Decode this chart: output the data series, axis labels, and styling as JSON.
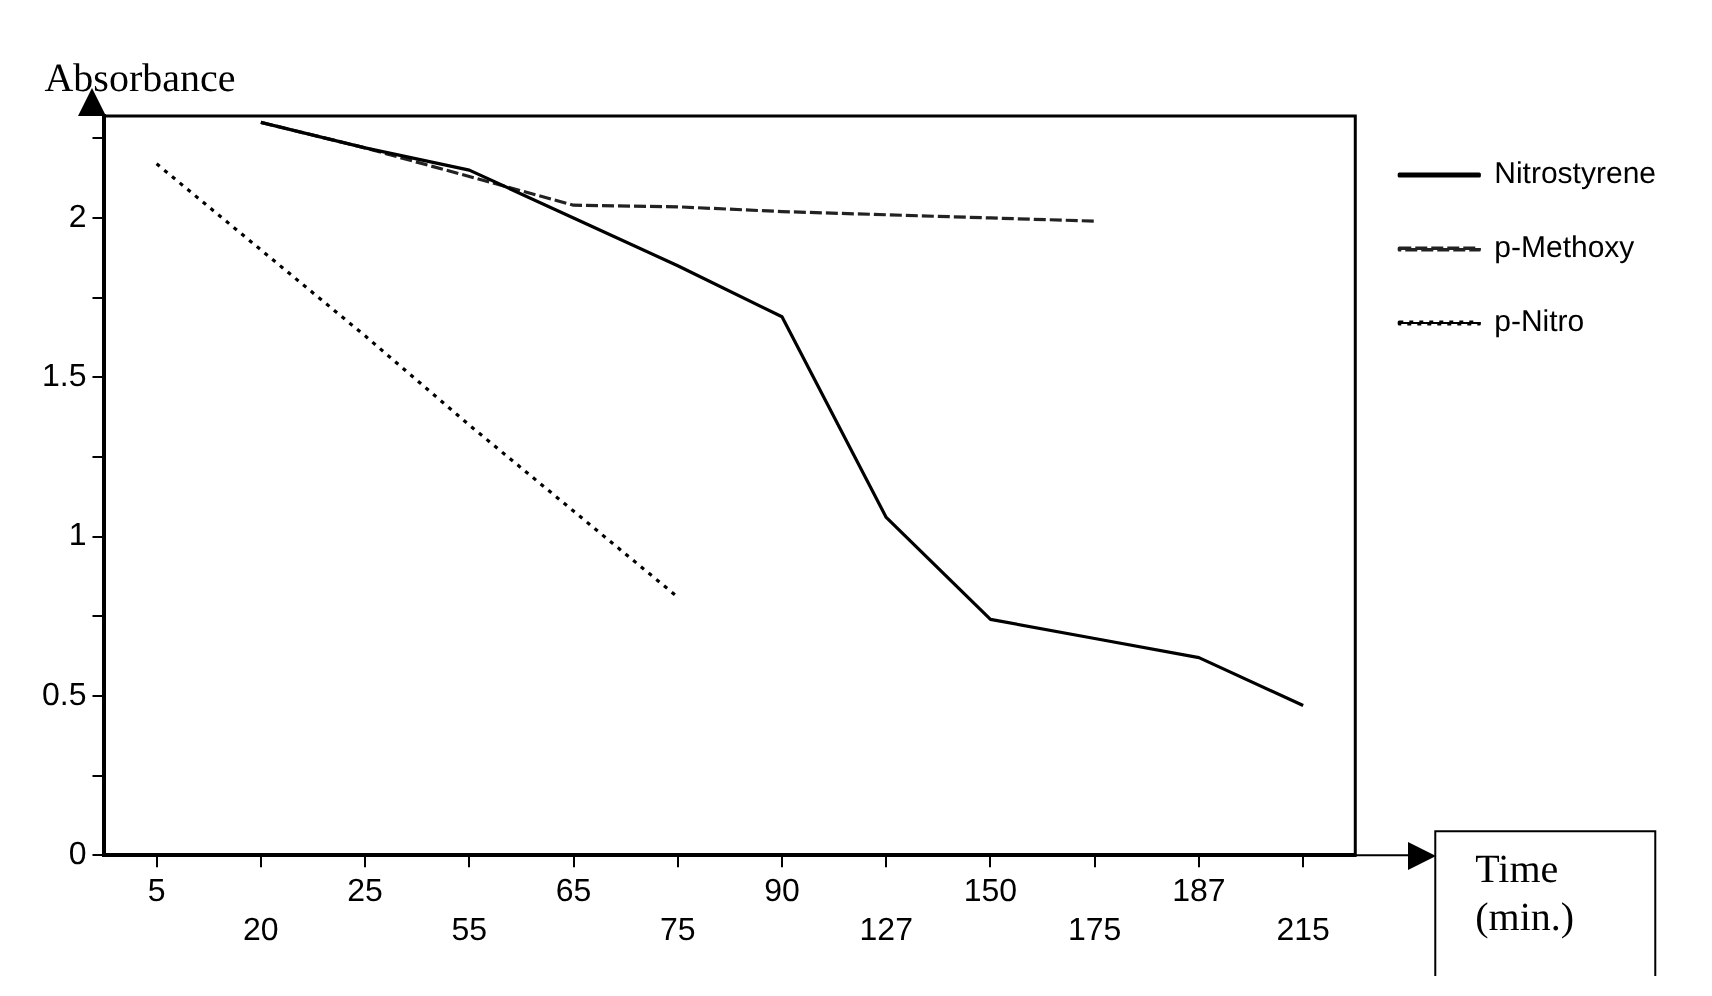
{
  "chart_data": {
    "type": "line",
    "xlabel": "Time (min.)",
    "ylabel": "Absorbance",
    "categories": [
      "5",
      "20",
      "25",
      "55",
      "65",
      "75",
      "90",
      "127",
      "150",
      "175",
      "187",
      "215"
    ],
    "series": [
      {
        "name": "Nitrostyrene",
        "color": "#000000",
        "line_style": "solid",
        "values": [
          null,
          2.3,
          2.22,
          2.15,
          2.0,
          1.85,
          1.69,
          1.06,
          0.74,
          0.68,
          0.62,
          0.47
        ]
      },
      {
        "name": "p-Methoxy",
        "color": "#222222",
        "line_style": "dashed",
        "values": [
          null,
          2.3,
          2.22,
          2.13,
          2.04,
          2.035,
          2.02,
          2.01,
          2.0,
          1.99,
          null,
          null
        ]
      },
      {
        "name": "p-Nitro",
        "color": "#000000",
        "line_style": "dotted",
        "values": [
          2.17,
          1.9,
          1.63,
          1.35,
          1.08,
          0.81,
          null,
          null,
          null,
          null,
          null,
          null
        ]
      }
    ],
    "ylim": [
      0,
      2.32
    ],
    "yticks": [
      0,
      {
        "value": 0.25,
        "label": null
      },
      0.5,
      {
        "value": 0.75,
        "label": null
      },
      1,
      {
        "value": 1.25,
        "label": null
      },
      1.5,
      {
        "value": 1.75,
        "label": null
      },
      2,
      {
        "value": 2.25,
        "label": null
      }
    ],
    "grid": false,
    "legend": "top right",
    "marker": "none"
  }
}
